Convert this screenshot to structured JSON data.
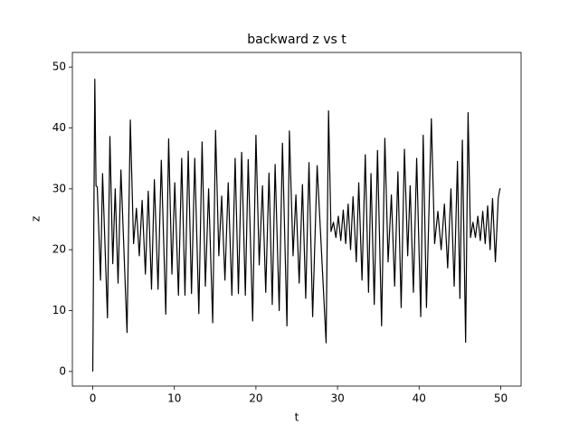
{
  "chart_data": {
    "type": "line",
    "title": "backward z vs t",
    "xlabel": "t",
    "ylabel": "z",
    "xlim": [
      -2.5,
      52.5
    ],
    "ylim": [
      -2.4,
      52.4
    ],
    "xticks": [
      0,
      10,
      20,
      30,
      40,
      50
    ],
    "yticks": [
      0,
      10,
      20,
      30,
      40,
      50
    ],
    "grid": false,
    "series": [
      {
        "color": "#000000",
        "x": [
          0,
          0.25,
          0.4,
          0.55,
          0.95,
          1.2,
          1.8,
          2.1,
          2.45,
          2.75,
          3.1,
          3.45,
          4.2,
          4.6,
          5.0,
          5.35,
          5.7,
          6.05,
          6.45,
          6.8,
          7.2,
          7.55,
          8.0,
          8.4,
          8.95,
          9.3,
          9.7,
          10.05,
          10.5,
          10.9,
          11.3,
          11.7,
          12.1,
          12.5,
          13.0,
          13.4,
          13.8,
          14.2,
          14.7,
          15.05,
          15.45,
          15.8,
          16.2,
          16.6,
          17.05,
          17.45,
          17.85,
          18.25,
          18.7,
          19.05,
          19.6,
          20.0,
          20.4,
          20.8,
          21.2,
          21.6,
          22.0,
          22.35,
          22.85,
          23.25,
          23.8,
          24.1,
          24.55,
          24.9,
          25.3,
          25.7,
          26.1,
          26.5,
          26.95,
          27.5,
          28.6,
          28.9,
          29.2,
          29.5,
          29.8,
          30.1,
          30.4,
          30.7,
          31.0,
          31.3,
          31.6,
          31.9,
          32.3,
          32.6,
          33.0,
          33.4,
          33.8,
          34.1,
          34.5,
          34.9,
          35.4,
          35.8,
          36.2,
          36.6,
          37.0,
          37.4,
          37.8,
          38.2,
          38.6,
          38.9,
          39.3,
          39.7,
          40.2,
          40.5,
          40.9,
          41.5,
          41.9,
          42.3,
          42.7,
          43.1,
          43.5,
          43.9,
          44.3,
          44.7,
          45.0,
          45.3,
          45.7,
          46.0,
          46.3,
          46.6,
          46.9,
          47.2,
          47.5,
          47.8,
          48.1,
          48.4,
          48.7,
          49.0,
          49.35,
          49.7,
          49.9,
          50
        ],
        "values": [
          0,
          48,
          30.5,
          30.3,
          15,
          32.5,
          8.8,
          38.6,
          17.7,
          30,
          14.5,
          33.1,
          6.4,
          41.3,
          21,
          26.8,
          19,
          28.1,
          16,
          29.6,
          13.5,
          31.5,
          13.5,
          34.7,
          9.4,
          38.2,
          16,
          31,
          12.5,
          35,
          12.5,
          36.2,
          12.8,
          35,
          9.5,
          37.7,
          14,
          30,
          8,
          39.6,
          19,
          28.8,
          15,
          31,
          12.5,
          35,
          12.8,
          36,
          12.5,
          34.8,
          8.3,
          38.8,
          17.5,
          30.5,
          13,
          32.6,
          11,
          34,
          10,
          37.5,
          7.5,
          39.5,
          19,
          29,
          14.5,
          30.7,
          12,
          34.3,
          9,
          33.8,
          4.7,
          42.8,
          23,
          24.5,
          22,
          25.5,
          21.5,
          26.5,
          21,
          27.5,
          20,
          28.7,
          18,
          31,
          15,
          35.6,
          13,
          32.5,
          11,
          36.3,
          7.5,
          38.3,
          18,
          29,
          14,
          32.8,
          10.5,
          36.5,
          19,
          30.5,
          13,
          35,
          9,
          38.8,
          10.5,
          41.5,
          21,
          26.3,
          20,
          27.5,
          17,
          30,
          14,
          34.5,
          12,
          38,
          4.8,
          42.5,
          22,
          24.5,
          22,
          25.5,
          21.5,
          26.3,
          21,
          27.2,
          20,
          28.4,
          18,
          28.5,
          30,
          30
        ]
      }
    ]
  }
}
